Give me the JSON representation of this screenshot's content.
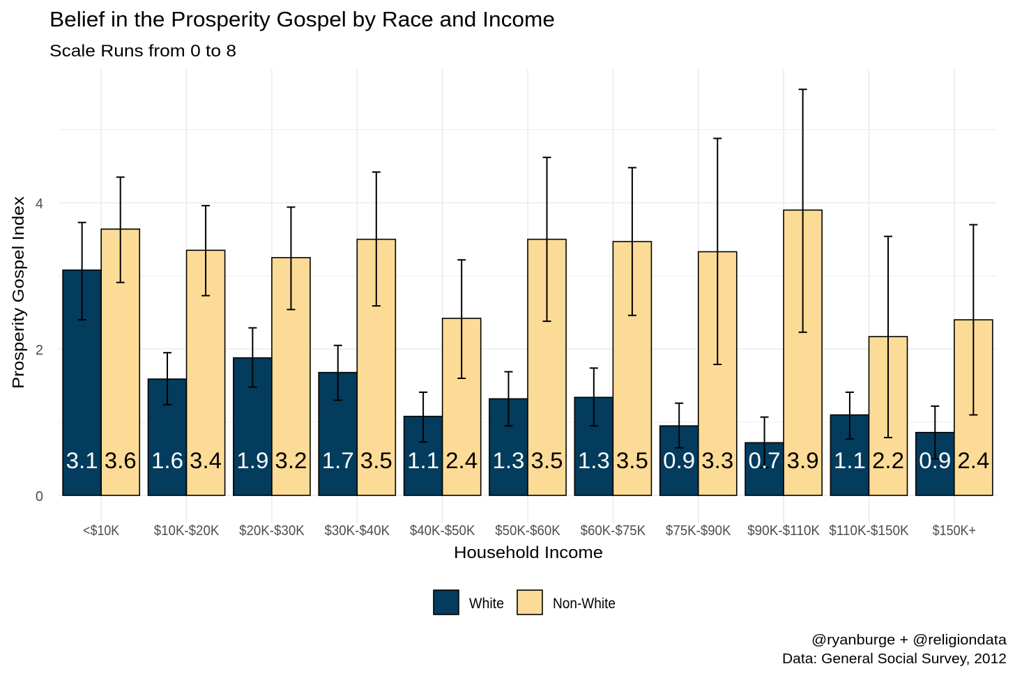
{
  "chart_data": {
    "type": "bar",
    "title": "Belief in the Prosperity Gospel by Race and Income",
    "subtitle": "Scale Runs from 0 to 8",
    "xlabel": "Household Income",
    "ylabel": "Prosperity Gospel Index",
    "ylim": [
      0,
      5.8
    ],
    "yticks": [
      0,
      2,
      4
    ],
    "grid": true,
    "legend_position": "bottom",
    "categories": [
      "<$10K",
      "$10K-$20K",
      "$20K-$30K",
      "$30K-$40K",
      "$40K-$50K",
      "$50K-$60K",
      "$60K-$75K",
      "$75K-$90K",
      "$90K-$110K",
      "$110K-$150K",
      "$150K+"
    ],
    "series": [
      {
        "name": "White",
        "color": "#033C5C",
        "values": [
          3.08,
          1.59,
          1.88,
          1.68,
          1.08,
          1.32,
          1.34,
          0.95,
          0.72,
          1.1,
          0.86
        ],
        "labels": [
          "3.1",
          "1.6",
          "1.9",
          "1.7",
          "1.1",
          "1.3",
          "1.3",
          "0.9",
          "0.7",
          "1.1",
          "0.9"
        ],
        "ci_upper": [
          3.73,
          1.95,
          2.29,
          2.05,
          1.41,
          1.69,
          1.74,
          1.26,
          1.07,
          1.41,
          1.22
        ],
        "ci_lower": [
          2.4,
          1.24,
          1.48,
          1.3,
          0.73,
          0.95,
          0.95,
          0.65,
          0.38,
          0.77,
          0.5
        ]
      },
      {
        "name": "Non-White",
        "color": "#FCDB96",
        "values": [
          3.64,
          3.35,
          3.25,
          3.5,
          2.42,
          3.5,
          3.47,
          3.33,
          3.9,
          2.17,
          2.4
        ],
        "labels": [
          "3.6",
          "3.4",
          "3.2",
          "3.5",
          "2.4",
          "3.5",
          "3.5",
          "3.3",
          "3.9",
          "2.2",
          "2.4"
        ],
        "ci_upper": [
          4.35,
          3.96,
          3.94,
          4.42,
          3.22,
          4.62,
          4.48,
          4.88,
          5.55,
          3.54,
          3.7
        ],
        "ci_lower": [
          2.91,
          2.73,
          2.54,
          2.59,
          1.6,
          2.38,
          2.46,
          1.79,
          2.23,
          0.79,
          1.1
        ]
      }
    ],
    "caption": [
      "@ryanburge + @religiondata",
      "Data: General Social Survey, 2012"
    ]
  }
}
